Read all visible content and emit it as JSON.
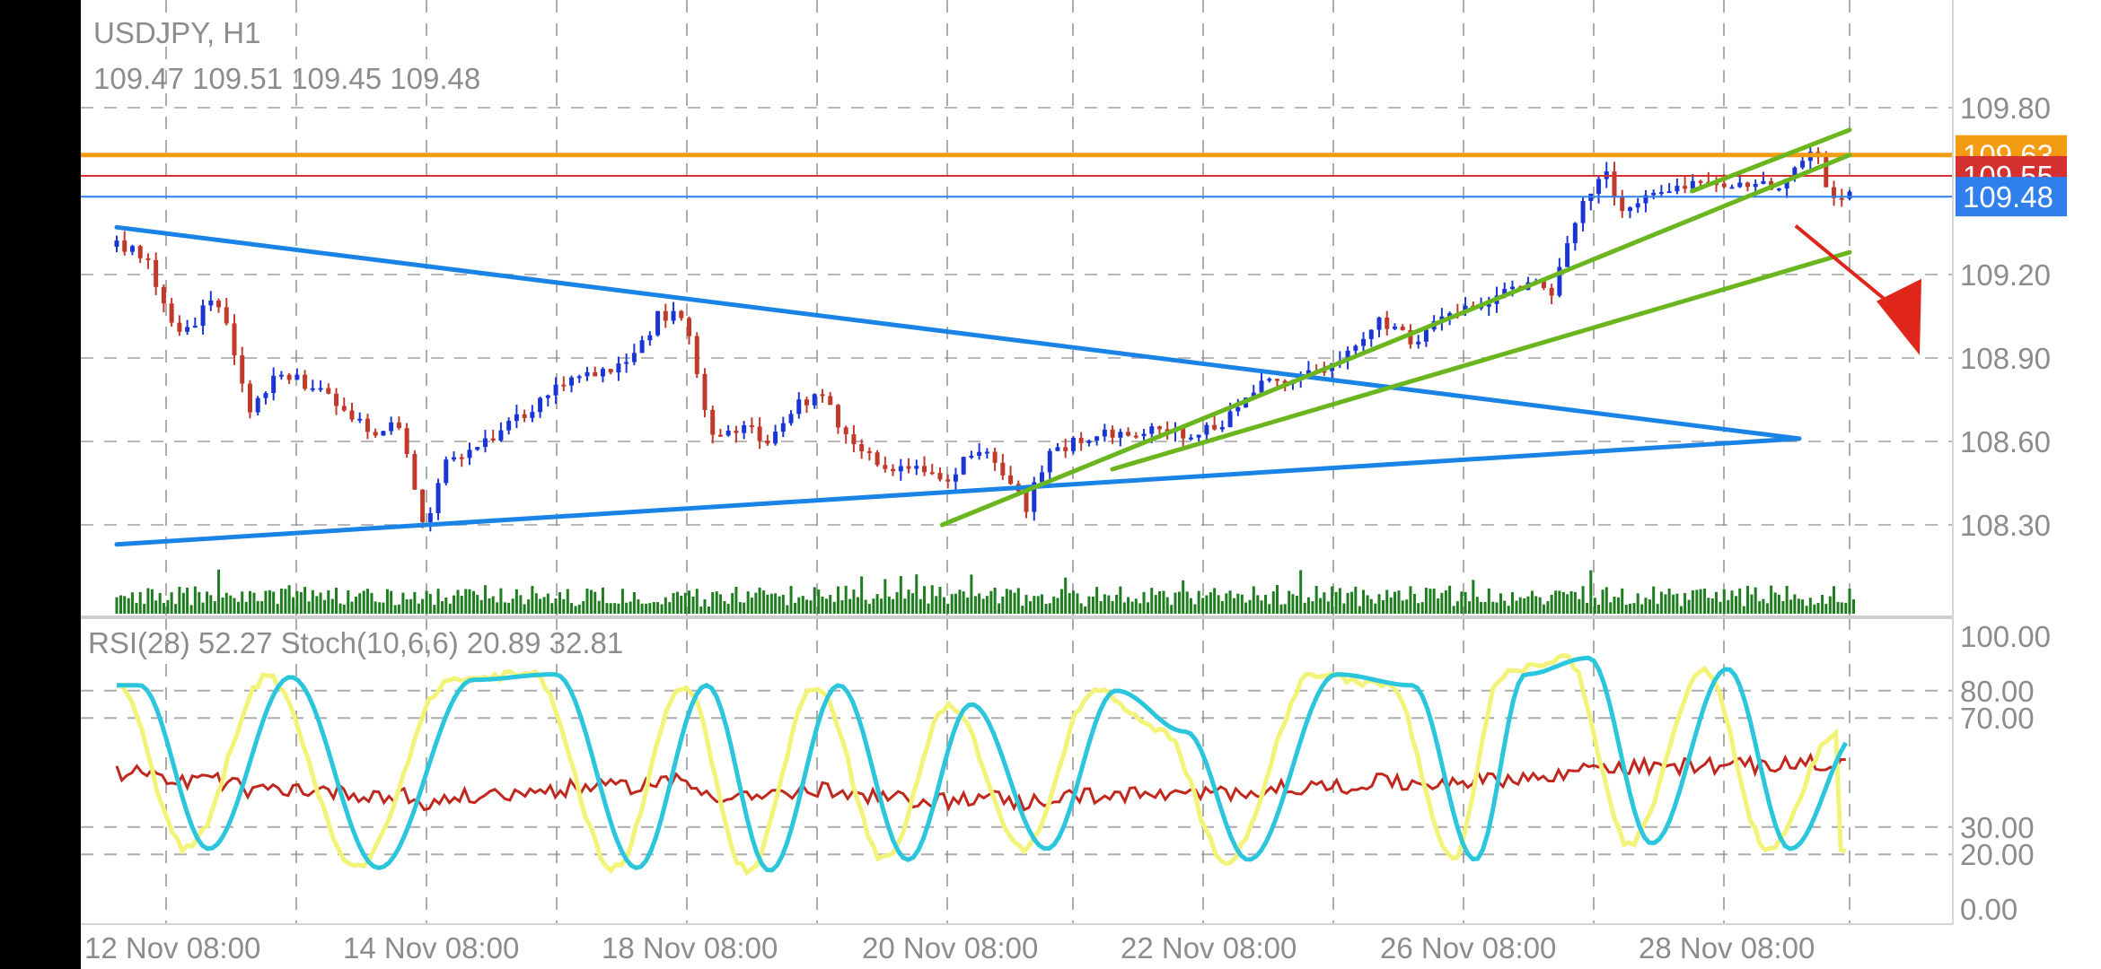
{
  "header": {
    "symbol": "USDJPY, H1",
    "ohlc": "109.47 109.51 109.45 109.48"
  },
  "indicator_header": "RSI(28) 52.27 Stoch(10,6,6) 20.89 32.81",
  "colors": {
    "background": "#ffffff",
    "frame": "#000000",
    "bull": "#1a35d6",
    "bear": "#c0392b",
    "volume": "#1e7d1e",
    "trend_blue": "#1a83e6",
    "trend_green": "#6bb51f",
    "resistance": "#f39c12",
    "level_red": "#d43030",
    "current": "#2f80ed",
    "rsi": "#c0281e",
    "stoch_main": "#f3f37a",
    "stoch_signal": "#2cc6dc",
    "arrow": "#e0261b",
    "grid": "#8a8a8a",
    "text": "#8c8c8c"
  },
  "chart_data": [
    {
      "type": "candlestick",
      "title": "USDJPY, H1",
      "x_tick_labels": [
        "12 Nov 08:00",
        "14 Nov 08:00",
        "18 Nov 08:00",
        "20 Nov 08:00",
        "22 Nov 08:00",
        "26 Nov 08:00",
        "28 Nov 08:00"
      ],
      "y_tick_labels": [
        "109.80",
        "109.20",
        "108.90",
        "108.60",
        "108.30"
      ],
      "ylim": [
        108.15,
        109.9
      ],
      "grid": true,
      "price_markers": [
        {
          "label": "109.63",
          "value": 109.63,
          "role": "resistance"
        },
        {
          "label": "109.55",
          "value": 109.555,
          "role": "level"
        },
        {
          "label": "109.48",
          "value": 109.48,
          "role": "current"
        }
      ],
      "close_path": [
        [
          0,
          109.3
        ],
        [
          20,
          109.28
        ],
        [
          45,
          109.02
        ],
        [
          60,
          109.0
        ],
        [
          75,
          109.13
        ],
        [
          90,
          108.98
        ],
        [
          105,
          108.72
        ],
        [
          130,
          108.85
        ],
        [
          160,
          108.78
        ],
        [
          200,
          108.63
        ],
        [
          225,
          108.66
        ],
        [
          245,
          108.28
        ],
        [
          260,
          108.52
        ],
        [
          300,
          108.63
        ],
        [
          330,
          108.72
        ],
        [
          365,
          108.85
        ],
        [
          400,
          108.86
        ],
        [
          430,
          109.05
        ],
        [
          450,
          109.05
        ],
        [
          470,
          108.63
        ],
        [
          500,
          108.64
        ],
        [
          520,
          108.6
        ],
        [
          540,
          108.73
        ],
        [
          560,
          108.77
        ],
        [
          580,
          108.6
        ],
        [
          610,
          108.52
        ],
        [
          640,
          108.48
        ],
        [
          660,
          108.44
        ],
        [
          680,
          108.58
        ],
        [
          700,
          108.52
        ],
        [
          715,
          108.42
        ],
        [
          720,
          108.35
        ],
        [
          740,
          108.55
        ],
        [
          770,
          108.61
        ],
        [
          800,
          108.64
        ],
        [
          850,
          108.62
        ],
        [
          880,
          108.68
        ],
        [
          910,
          108.8
        ],
        [
          940,
          108.85
        ],
        [
          965,
          108.88
        ],
        [
          1000,
          109.03
        ],
        [
          1030,
          108.96
        ],
        [
          1060,
          109.06
        ],
        [
          1090,
          109.12
        ],
        [
          1120,
          109.17
        ],
        [
          1140,
          109.13
        ],
        [
          1160,
          109.45
        ],
        [
          1180,
          109.58
        ],
        [
          1195,
          109.43
        ],
        [
          1210,
          109.48
        ],
        [
          1240,
          109.5
        ],
        [
          1260,
          109.55
        ],
        [
          1290,
          109.52
        ],
        [
          1320,
          109.52
        ],
        [
          1345,
          109.66
        ],
        [
          1360,
          109.48
        ],
        [
          1375,
          109.48
        ]
      ],
      "trend_lines": [
        {
          "color_key": "trend_blue",
          "from": [
            0,
            109.37
          ],
          "to": [
            1335,
            108.61
          ]
        },
        {
          "color_key": "trend_blue",
          "from": [
            0,
            108.23
          ],
          "to": [
            1335,
            108.61
          ]
        },
        {
          "color_key": "trend_green",
          "from": [
            655,
            108.3
          ],
          "to": [
            1375,
            109.63
          ]
        },
        {
          "color_key": "trend_green",
          "from": [
            790,
            108.5
          ],
          "to": [
            1375,
            109.28
          ]
        },
        {
          "color_key": "trend_green",
          "from": [
            1250,
            109.5
          ],
          "to": [
            1375,
            109.72
          ]
        }
      ],
      "arrow": {
        "from": [
          1325,
          109.44
        ],
        "to": [
          1375,
          109.12
        ],
        "direction": "down"
      }
    },
    {
      "type": "line",
      "title": "RSI(28) 52.27 Stoch(10,6,6) 20.89 32.81",
      "y_tick_labels": [
        "100.00",
        "80.00",
        "70.00",
        "30.00",
        "20.00",
        "0.00"
      ],
      "ylim": [
        0,
        100
      ],
      "levels": [
        80,
        70,
        30,
        20
      ],
      "grid": true,
      "series": [
        {
          "name": "RSI(28)",
          "last_value": 52.27,
          "color_key": "rsi"
        },
        {
          "name": "Stoch main",
          "last_value": 20.89,
          "color_key": "stoch_main"
        },
        {
          "name": "Stoch signal",
          "last_value": 32.81,
          "color_key": "stoch_signal"
        }
      ]
    }
  ]
}
